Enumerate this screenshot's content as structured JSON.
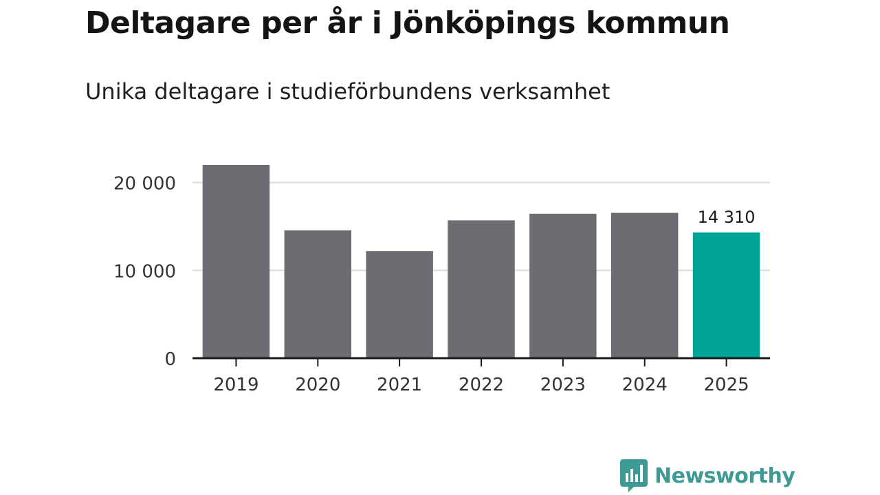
{
  "title": "Deltagare per år i Jönköpings kommun",
  "subtitle": "Unika deltagare i studieförbundens verksamhet",
  "brand": {
    "name": "Newsworthy",
    "color": "#3d9a94"
  },
  "colors": {
    "bar": "#6d6c72",
    "highlight": "#00a398",
    "grid": "#d9d9d9",
    "axis": "#1a1a1a"
  },
  "chart_data": {
    "type": "bar",
    "categories": [
      "2019",
      "2020",
      "2021",
      "2022",
      "2023",
      "2024",
      "2025"
    ],
    "values": [
      22000,
      14550,
      12200,
      15700,
      16450,
      16550,
      14310
    ],
    "highlight_index": 6,
    "data_labels": [
      null,
      null,
      null,
      null,
      null,
      null,
      "14 310"
    ],
    "yticks": [
      0,
      10000,
      20000
    ],
    "ytick_labels": [
      "0",
      "10 000",
      "20 000"
    ],
    "ylim": [
      0,
      22000
    ],
    "grid": true,
    "xlabel": "",
    "ylabel": ""
  }
}
